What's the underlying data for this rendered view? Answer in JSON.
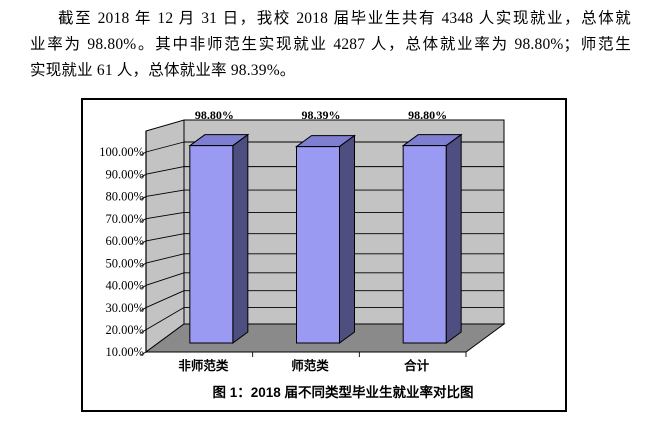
{
  "page": {
    "background": "#ffffff"
  },
  "paragraph": {
    "lines": [
      "截至 2018 年 12 月 31 日，我校 2018 届毕业生共有 4348 人实现就业，总体就",
      "业率为 98.80%。其中非师范生实现就业 4287 人，总体就业率为 98.80%；师范生",
      "实现就业 61 人，总体就业率 98.39%。"
    ]
  },
  "figure": {
    "caption": "图 1：2018 届不同类型毕业生就业率对比图"
  },
  "chart_data": {
    "type": "bar",
    "subtype": "3d-column",
    "title": "图 1：2018 届不同类型毕业生就业率对比图",
    "categories": [
      "非师范类",
      "师范类",
      "合计"
    ],
    "values": [
      98.8,
      98.39,
      98.8
    ],
    "data_labels": [
      "98.80%",
      "98.39%",
      "98.80%"
    ],
    "xlabel": "",
    "ylabel": "",
    "ylim": [
      10,
      100
    ],
    "ytick_step": 10,
    "ytick_labels": [
      "10.00%",
      "20.00%",
      "30.00%",
      "40.00%",
      "50.00%",
      "60.00%",
      "70.00%",
      "80.00%",
      "90.00%",
      "100.00%"
    ],
    "grid": true,
    "legend": false,
    "colors": {
      "bar_front": "#9a9af2",
      "bar_top": "#7f7fd2",
      "bar_side": "#4e4e80",
      "wall": "#c3c3c3",
      "floor": "#8a8a8a",
      "outline": "#000000"
    }
  }
}
